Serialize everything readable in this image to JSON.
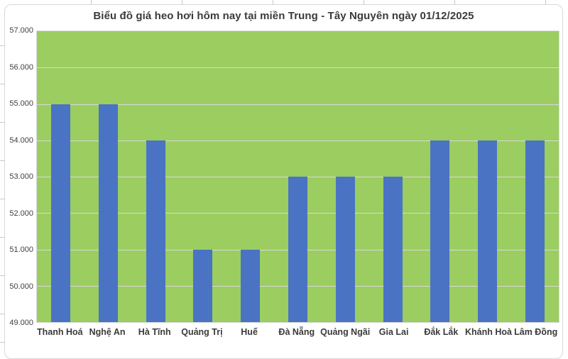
{
  "chart": {
    "title": "Biểu đồ giá heo hơi hôm nay tại miền Trung - Tây Nguyên ngày 01/12/2025"
  },
  "chart_data": {
    "type": "bar",
    "title": "Biểu đồ giá heo hơi hôm nay tại miền Trung - Tây Nguyên ngày 01/12/2025",
    "categories": [
      "Thanh Hoá",
      "Nghệ An",
      "Hà Tĩnh",
      "Quảng Trị",
      "Huế",
      "Đà Nẵng",
      "Quảng Ngãi",
      "Gia Lai",
      "Đắk Lắk",
      "Khánh Hoà",
      "Lâm Đồng"
    ],
    "values": [
      55000,
      55000,
      54000,
      51000,
      51000,
      53000,
      53000,
      53000,
      54000,
      54000,
      54000
    ],
    "y_tick_labels": [
      "49.000",
      "50.000",
      "51.000",
      "52.000",
      "53.000",
      "54.000",
      "55.000",
      "56.000",
      "57.000"
    ],
    "y_tick_values": [
      49000,
      50000,
      51000,
      52000,
      53000,
      54000,
      55000,
      56000,
      57000
    ],
    "ylim": [
      49000,
      57000
    ],
    "xlabel": "",
    "ylabel": "",
    "legend_position": "none",
    "grid": "horizontal",
    "colors": {
      "bar": "#4a73c4",
      "plot_background": "#9bcd60",
      "gridline": "#d9d9d9",
      "title_text": "#3b3b3b",
      "axis_label_text": "#404040",
      "category_label_text": "#3a3a3a",
      "chart_border": "#d8d8d8",
      "page_background": "#ffffff"
    }
  }
}
